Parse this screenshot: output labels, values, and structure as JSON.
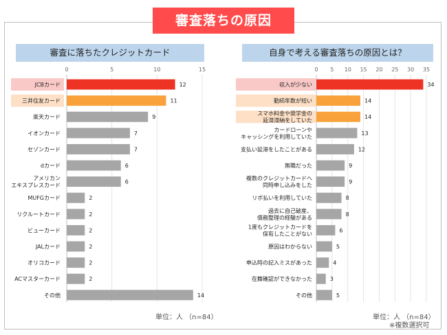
{
  "title": "審査落ちの原因",
  "colors": {
    "highlight1": "#ee3224",
    "highlight2": "#f9a23c",
    "default": "#a6a6a6",
    "highlight1_bg": "#f9c9c7",
    "highlight2_bg": "#fde0c6",
    "title_bg": "#ff4b4b",
    "header_bg": "#bcd5ec"
  },
  "chart_data": [
    {
      "type": "bar",
      "orientation": "horizontal",
      "title": "審査に落ちたクレジットカード",
      "categories": [
        "JCBカード",
        "三井住友カード",
        "楽天カード",
        "イオンカード",
        "セゾンカード",
        "dカード",
        "アメリカン|エキスプレスカード",
        "MUFGカード",
        "リクルートカード",
        "ビューカード",
        "JALカード",
        "オリコカード",
        "ACマスターカード",
        "その他"
      ],
      "values": [
        12,
        11,
        9,
        7,
        7,
        6,
        6,
        2,
        2,
        2,
        2,
        2,
        2,
        14
      ],
      "highlight": [
        1,
        2,
        0,
        0,
        0,
        0,
        0,
        0,
        0,
        0,
        0,
        0,
        0,
        0
      ],
      "xlim": [
        0,
        15
      ],
      "ticks": [
        0,
        5,
        10,
        15
      ],
      "unit": "単位：人 （n=84）",
      "note": ""
    },
    {
      "type": "bar",
      "orientation": "horizontal",
      "title": "自身で考える審査落ちの原因とは？",
      "categories": [
        "収入が少ない",
        "勤続年数が短い",
        "スマホ料金や奨学金の|延滞滞納をしていた",
        "カードローンや|キャッシングを利用していた",
        "支払い延滞をしたことがある",
        "無職だった",
        "複数のクレジットカードへ|同時申し込みをした",
        "リボ払いを利用していた",
        "過去に自己破産、|債務整理の経験がある",
        "1度もクレジットカードを|保有したことがない",
        "原因はわからない",
        "申込時の記入ミスがあった",
        "在籍確認ができなかった",
        "その他"
      ],
      "values": [
        34,
        14,
        14,
        13,
        12,
        9,
        9,
        8,
        8,
        6,
        5,
        4,
        3,
        5
      ],
      "highlight": [
        1,
        2,
        2,
        0,
        0,
        0,
        0,
        0,
        0,
        0,
        0,
        0,
        0,
        0
      ],
      "xlim": [
        0,
        35
      ],
      "ticks": [
        0,
        5,
        10,
        15,
        20,
        25,
        30,
        35
      ],
      "unit": "単位：人 （n=84）",
      "note": "※複数選択可"
    }
  ]
}
